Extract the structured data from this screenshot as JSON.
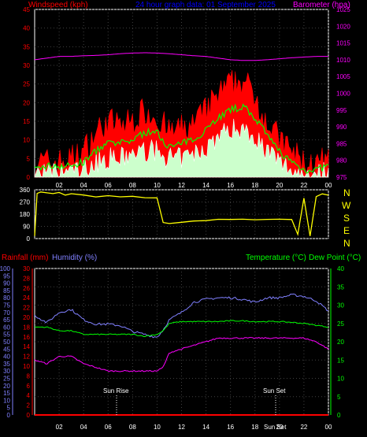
{
  "header": {
    "windspeed_label": "Windspeed (kph)",
    "title": "24 hour graph data: 01 September 2025",
    "barometer_label": "Barometer (hpa)"
  },
  "panel2": {
    "compass": [
      "N",
      "W",
      "S",
      "E",
      "N"
    ]
  },
  "panel3": {
    "rainfall_label": "Rainfall (mm)",
    "humidity_label": "Humidity (%)",
    "temp_label": "Temperature (°C)",
    "dew_label": "Dew Point (°C)",
    "sunrise_label": "Sun Rise",
    "sunset_label": "Sun Set",
    "sunset_axis_label": "Sun Set"
  },
  "colors": {
    "wind_gust": "#ff0000",
    "wind_avg": "#00ff00",
    "wind_speed": "#ffffff",
    "wind_fill": "#ccffcc",
    "barometer": "#ff00ff",
    "direction": "#ffff00",
    "rainfall": "#ff0000",
    "humidity": "#8080ff",
    "temperature": "#ff00ff",
    "dewpoint": "#00ff00"
  },
  "chart_data": [
    {
      "type": "line",
      "title": "24 hour graph data: 01 September 2025",
      "x_ticks": [
        "02",
        "04",
        "06",
        "08",
        "10",
        "12",
        "14",
        "16",
        "18",
        "20",
        "22",
        "00"
      ],
      "xlim_hours": [
        0,
        24
      ],
      "left_axis": {
        "label": "Windspeed (kph)",
        "ylim": [
          0,
          45
        ],
        "ticks": [
          0,
          5,
          10,
          15,
          20,
          25,
          30,
          35,
          40,
          45
        ]
      },
      "right_axis": {
        "label": "Barometer (hpa)",
        "ylim": [
          975,
          1025
        ],
        "ticks": [
          975,
          980,
          985,
          990,
          995,
          1000,
          1005,
          1010,
          1015,
          1020,
          1025
        ]
      },
      "x": [
        0,
        1,
        2,
        3,
        4,
        5,
        6,
        7,
        8,
        9,
        10,
        11,
        12,
        13,
        14,
        15,
        16,
        17,
        18,
        19,
        20,
        21,
        22,
        23,
        24
      ],
      "series": [
        {
          "axis": "left",
          "values": [
            4,
            4,
            4,
            5,
            7,
            12,
            15,
            14,
            15,
            18,
            16,
            12,
            13,
            14,
            18,
            22,
            25,
            26,
            22,
            15,
            10,
            7,
            4,
            3,
            5
          ]
        },
        {
          "axis": "left",
          "values": [
            2,
            3,
            3,
            3,
            4,
            7,
            9,
            9,
            10,
            12,
            12,
            8,
            9,
            10,
            13,
            16,
            18,
            19,
            16,
            11,
            7,
            4,
            2,
            2,
            3
          ]
        },
        {
          "axis": "left",
          "values": [
            1,
            1,
            1,
            2,
            2,
            4,
            5,
            5,
            6,
            7,
            7,
            5,
            5,
            6,
            8,
            11,
            13,
            13,
            11,
            7,
            4,
            2,
            1,
            1,
            2
          ]
        },
        {
          "axis": "right",
          "values": [
            1010,
            1010.5,
            1011,
            1011,
            1011.2,
            1011.3,
            1011.5,
            1011.8,
            1012,
            1012.1,
            1012,
            1011.8,
            1011.5,
            1011.2,
            1011,
            1010.5,
            1010,
            1009.8,
            1009.8,
            1010,
            1010.3,
            1010.6,
            1010.8,
            1011,
            1011
          ]
        }
      ]
    },
    {
      "type": "line",
      "title": "",
      "x_ticks": [],
      "xlim_hours": [
        0,
        24
      ],
      "left_axis": {
        "ylim": [
          0,
          360
        ],
        "ticks": [
          0,
          90,
          180,
          270,
          360
        ]
      },
      "right_axis_labels": [
        "N",
        "W",
        "S",
        "E",
        "N"
      ],
      "x": [
        0,
        0.2,
        0.5,
        1,
        1.5,
        2,
        2.5,
        3,
        4,
        5,
        6,
        7,
        8,
        9,
        10,
        10.5,
        11,
        12,
        13,
        14,
        15,
        16,
        17,
        18,
        19,
        20,
        21,
        21.5,
        22,
        22.5,
        23,
        23.5,
        24
      ],
      "series": [
        {
          "values": [
            20,
            330,
            345,
            340,
            330,
            340,
            320,
            330,
            320,
            310,
            315,
            305,
            310,
            300,
            300,
            120,
            110,
            120,
            130,
            135,
            140,
            140,
            140,
            140,
            140,
            140,
            140,
            30,
            300,
            20,
            310,
            330,
            320
          ]
        }
      ]
    },
    {
      "type": "line",
      "title": "",
      "x_ticks": [
        "02",
        "04",
        "06",
        "08",
        "10",
        "12",
        "14",
        "16",
        "18",
        "20",
        "22",
        "00"
      ],
      "xlim_hours": [
        0,
        24
      ],
      "rain_axis": {
        "label": "Rainfall (mm)",
        "ylim": [
          0,
          30
        ],
        "ticks": [
          0,
          2,
          4,
          6,
          8,
          10,
          12,
          14,
          16,
          18,
          20,
          22,
          24,
          26,
          28,
          30
        ]
      },
      "humidity_axis": {
        "label": "Humidity (%)",
        "ylim": [
          0,
          100
        ],
        "ticks": [
          0,
          5,
          10,
          15,
          20,
          25,
          30,
          35,
          40,
          45,
          50,
          55,
          60,
          65,
          70,
          75,
          80,
          85,
          90,
          95,
          100
        ]
      },
      "temp_axis": {
        "label": "Temperature (°C)/Dew Point (°C)",
        "ylim": [
          0,
          40
        ],
        "ticks": [
          0,
          5,
          10,
          15,
          20,
          25,
          30,
          35,
          40
        ]
      },
      "x": [
        0,
        1,
        2,
        3,
        4,
        5,
        6,
        7,
        8,
        9,
        10,
        10.5,
        11,
        12,
        13,
        14,
        15,
        16,
        17,
        18,
        19,
        20,
        21,
        22,
        23,
        24
      ],
      "series": [
        {
          "axis": "rain",
          "values": [
            0,
            0,
            0,
            0,
            0,
            0,
            0,
            0,
            0,
            0,
            0,
            0,
            0,
            0,
            0,
            0,
            0,
            0,
            0,
            0,
            0,
            0,
            0,
            0,
            0,
            0
          ]
        },
        {
          "axis": "humidity",
          "values": [
            68,
            63,
            70,
            72,
            65,
            62,
            62,
            61,
            57,
            55,
            53,
            58,
            65,
            70,
            77,
            79,
            80,
            80,
            79,
            77,
            80,
            80,
            82,
            81,
            78,
            71
          ]
        },
        {
          "axis": "temperature",
          "values": [
            15,
            14,
            16,
            16,
            14,
            13,
            12,
            12,
            12,
            12,
            12,
            13,
            17,
            18,
            19,
            20,
            21,
            21,
            21,
            21,
            21,
            21,
            21,
            21,
            20,
            18
          ]
        },
        {
          "axis": "dewpoint",
          "values": [
            24,
            24,
            23,
            23,
            22,
            22,
            22,
            22,
            22,
            21.5,
            22,
            23,
            25,
            25.5,
            25.5,
            25.5,
            25.5,
            25.7,
            25.7,
            25.5,
            25.5,
            25.5,
            25.3,
            25,
            24.5,
            24
          ]
        }
      ],
      "annotations": [
        {
          "text": "Sun Rise",
          "x_hours": 7.0
        },
        {
          "text": "Sun Set",
          "x_hours": 19.3
        }
      ]
    }
  ]
}
